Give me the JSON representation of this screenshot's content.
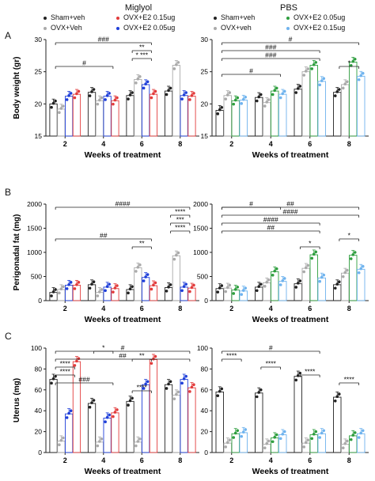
{
  "headers": {
    "left": "Miglyol",
    "right": "PBS"
  },
  "panel_letters": [
    "A",
    "B",
    "C"
  ],
  "legend": {
    "miglyol": [
      {
        "label": "Sham+veh",
        "color": "#222222"
      },
      {
        "label": "OVX+Veh",
        "color": "#aaaaaa"
      },
      {
        "label": "OVX+E2 0.05ug",
        "color": "#1f3fd9"
      },
      {
        "label": "OVX+E2 0.15ug",
        "color": "#e23b3b"
      }
    ],
    "pbs": [
      {
        "label": "Sham+veh",
        "color": "#222222"
      },
      {
        "label": "OVX+veh",
        "color": "#aaaaaa"
      },
      {
        "label": "OVX+E2 0.05ug",
        "color": "#2e9e3e"
      },
      {
        "label": "OVX+E2 0.15ug",
        "color": "#6fb3ee"
      }
    ]
  },
  "chart_data": [
    {
      "type": "bar",
      "group": "Miglyol",
      "categories": [
        "2",
        "4",
        "6",
        "8"
      ],
      "xlabel": "Weeks of treatment",
      "ylabel": "Body weight (gr)",
      "ylim": [
        15,
        30
      ],
      "yticks": [
        15,
        20,
        25,
        30
      ],
      "series": [
        {
          "name": "Sham+veh",
          "values": [
            20,
            21.8,
            21.3,
            22
          ]
        },
        {
          "name": "OVX+Veh",
          "values": [
            19.2,
            20.5,
            23.8,
            26
          ]
        },
        {
          "name": "OVX+E2 0.05ug",
          "values": [
            21.2,
            21.2,
            23,
            21.3
          ]
        },
        {
          "name": "OVX+E2 0.15ug",
          "values": [
            21.5,
            20.5,
            21.5,
            21.2
          ]
        }
      ],
      "annotations": [
        {
          "text": "###",
          "from": 1,
          "to": 3
        },
        {
          "text": "**",
          "from": 3,
          "to": 3
        },
        {
          "text": "* ***",
          "from": 3,
          "to": 3
        },
        {
          "text": "#",
          "from": 1,
          "to": 2
        }
      ]
    },
    {
      "type": "bar",
      "group": "PBS",
      "categories": [
        "2",
        "4",
        "6",
        "8"
      ],
      "xlabel": "Weeks of treatment",
      "ylabel": "",
      "ylim": [
        15,
        30
      ],
      "yticks": [
        15,
        20,
        25,
        30
      ],
      "series": [
        {
          "name": "Sham+veh",
          "values": [
            19,
            21,
            22.3,
            21.8
          ]
        },
        {
          "name": "OVX+veh",
          "values": [
            21.3,
            20.2,
            25,
            23
          ]
        },
        {
          "name": "OVX+E2 0.05ug",
          "values": [
            20.5,
            22,
            26,
            26.5
          ]
        },
        {
          "name": "OVX+E2 0.15ug",
          "values": [
            20.6,
            21.5,
            23.5,
            24.3
          ]
        }
      ],
      "annotations": [
        {
          "text": "#",
          "from": 1,
          "to": 4
        },
        {
          "text": "###",
          "from": 1,
          "to": 3
        },
        {
          "text": "###",
          "from": 1,
          "to": 3
        },
        {
          "text": "*",
          "from": 4,
          "to": 4
        },
        {
          "text": "#",
          "from": 1,
          "to": 2
        }
      ]
    },
    {
      "type": "bar",
      "group": "Miglyol",
      "categories": [
        "2",
        "4",
        "6",
        "8"
      ],
      "xlabel": "Weeks of treatment",
      "ylabel": "Perigonadal fat (mg)",
      "ylim": [
        0,
        2000
      ],
      "yticks": [
        0,
        500,
        1000,
        1500,
        2000
      ],
      "series": [
        {
          "name": "Sham+veh",
          "values": [
            170,
            330,
            230,
            270
          ]
        },
        {
          "name": "OVX+Veh",
          "values": [
            230,
            170,
            680,
            930
          ]
        },
        {
          "name": "OVX+E2 0.05ug",
          "values": [
            320,
            280,
            480,
            280
          ]
        },
        {
          "name": "OVX+E2 0.15ug",
          "values": [
            320,
            250,
            310,
            260
          ]
        }
      ],
      "annotations": [
        {
          "text": "####",
          "from": 1,
          "to": 4
        },
        {
          "text": "****",
          "from": 4,
          "to": 4
        },
        {
          "text": "***",
          "from": 4,
          "to": 4
        },
        {
          "text": "****",
          "from": 4,
          "to": 4
        },
        {
          "text": "##",
          "from": 1,
          "to": 3
        },
        {
          "text": "**",
          "from": 3,
          "to": 3
        }
      ]
    },
    {
      "type": "bar",
      "group": "PBS",
      "categories": [
        "2",
        "4",
        "6",
        "8"
      ],
      "xlabel": "Weeks of treatment",
      "ylabel": "",
      "ylim": [
        0,
        2000
      ],
      "yticks": [
        0,
        500,
        1000,
        1500,
        2000
      ],
      "series": [
        {
          "name": "Sham+veh",
          "values": [
            250,
            280,
            350,
            330
          ]
        },
        {
          "name": "OVX+veh",
          "values": [
            260,
            370,
            670,
            570
          ]
        },
        {
          "name": "OVX+E2 0.05ug",
          "values": [
            220,
            600,
            950,
            940
          ]
        },
        {
          "name": "OVX+E2 0.15ug",
          "values": [
            200,
            400,
            470,
            650
          ]
        }
      ],
      "annotations": [
        {
          "text": "##",
          "from": 1,
          "to": 4
        },
        {
          "text": "####",
          "from": 1,
          "to": 4
        },
        {
          "text": "####",
          "from": 1,
          "to": 3
        },
        {
          "text": "##",
          "from": 1,
          "to": 3
        },
        {
          "text": "*",
          "from": 4,
          "to": 4
        },
        {
          "text": "*",
          "from": 3,
          "to": 3
        },
        {
          "text": "#",
          "from": 1,
          "to": 2
        }
      ]
    },
    {
      "type": "bar",
      "group": "Miglyol",
      "categories": [
        "2",
        "4",
        "6",
        "8"
      ],
      "xlabel": "Weeks of treatment",
      "ylabel": "Uterus (mg)",
      "ylim": [
        0,
        100
      ],
      "yticks": [
        0,
        20,
        40,
        60,
        80,
        100
      ],
      "series": [
        {
          "name": "Sham+veh",
          "values": [
            70,
            47,
            49,
            65
          ]
        },
        {
          "name": "OVX+Veh",
          "values": [
            11,
            10,
            10,
            55
          ]
        },
        {
          "name": "OVX+E2 0.05ug",
          "values": [
            37,
            33,
            65,
            70
          ]
        },
        {
          "name": "OVX+E2 0.15ug",
          "values": [
            87,
            38,
            89,
            62
          ]
        }
      ],
      "annotations": [
        {
          "text": "#",
          "from": 1,
          "to": 4
        },
        {
          "text": "##",
          "from": 1,
          "to": 4
        },
        {
          "text": "****",
          "from": 1,
          "to": 1
        },
        {
          "text": "****",
          "from": 1,
          "to": 1
        },
        {
          "text": "###",
          "from": 1,
          "to": 2
        },
        {
          "text": "****",
          "from": 3,
          "to": 3
        },
        {
          "text": "*",
          "from": 2,
          "to": 2
        },
        {
          "text": "**",
          "from": 3,
          "to": 3
        }
      ]
    },
    {
      "type": "bar",
      "group": "PBS",
      "categories": [
        "2",
        "4",
        "6",
        "8"
      ],
      "xlabel": "Weeks of treatment",
      "ylabel": "",
      "ylim": [
        0,
        100
      ],
      "yticks": [
        0,
        20,
        40,
        60,
        80,
        100
      ],
      "series": [
        {
          "name": "Sham+veh",
          "values": [
            58,
            57,
            73,
            53
          ]
        },
        {
          "name": "OVX+veh",
          "values": [
            9,
            8,
            9,
            8
          ]
        },
        {
          "name": "OVX+E2 0.05ug",
          "values": [
            18,
            14,
            17,
            16
          ]
        },
        {
          "name": "OVX+E2 0.15ug",
          "values": [
            19,
            17,
            18,
            18
          ]
        }
      ],
      "annotations": [
        {
          "text": "#",
          "from": 1,
          "to": 3
        },
        {
          "text": "****",
          "from": 1,
          "to": 1
        },
        {
          "text": "****",
          "from": 2,
          "to": 2
        },
        {
          "text": "****",
          "from": 3,
          "to": 3
        },
        {
          "text": "****",
          "from": 4,
          "to": 4
        }
      ]
    }
  ]
}
